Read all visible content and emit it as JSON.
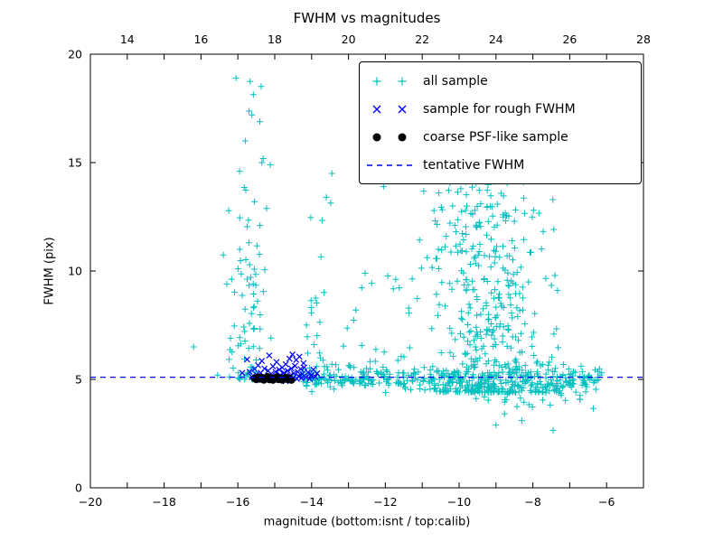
{
  "chart_data": {
    "type": "scatter",
    "title": "FWHM vs magnitudes",
    "xlabel": "magnitude (bottom:isnt / top:calib)",
    "ylabel": "FWHM (pix)",
    "xlim": [
      -20,
      -5
    ],
    "ylim": [
      0,
      20
    ],
    "x_ticks": [
      -20,
      -18,
      -16,
      -14,
      -12,
      -10,
      -8,
      -6
    ],
    "y_ticks": [
      0,
      5,
      10,
      15,
      20
    ],
    "top_axis": {
      "lim": [
        13,
        28
      ],
      "ticks": [
        14,
        16,
        18,
        20,
        22,
        24,
        26,
        28
      ]
    },
    "grid": false,
    "legend_position": "upper right",
    "tentative_fwhm": 5.1,
    "seed": 42,
    "series": [
      {
        "name": "all sample",
        "marker": "+",
        "color": "#00bfbf",
        "points": [
          [
            -17.2,
            6.5
          ],
          [
            -16.55,
            5.2
          ],
          [
            -16.3,
            9.4
          ],
          [
            -16.2,
            6.9
          ],
          [
            -16.05,
            18.9
          ],
          [
            -15.62,
            17.2
          ],
          [
            -15.8,
            16.0
          ],
          [
            -15.35,
            15.0
          ],
          [
            -15.95,
            14.6
          ],
          [
            -15.12,
            14.9
          ],
          [
            -15.55,
            13.2
          ],
          [
            -15.4,
            12.1
          ],
          [
            -15.7,
            11.3
          ],
          [
            -13.45,
            14.5
          ],
          [
            -13.6,
            13.4
          ],
          [
            -12.05,
            13.9
          ],
          [
            -10.45,
            14.75
          ],
          [
            -10.15,
            14.9
          ],
          [
            -9.85,
            15.1
          ],
          [
            -10.55,
            13.6
          ],
          [
            -12.55,
            9.9
          ],
          [
            -12.8,
            8.2
          ],
          [
            -9.0,
            2.9
          ],
          [
            -8.3,
            3.1
          ],
          [
            -7.45,
            2.65
          ],
          [
            -6.35,
            4.85
          ],
          [
            -6.6,
            5.05
          ]
        ],
        "clusters": [
          {
            "count": 300,
            "x": {
              "dist": "uniform",
              "min": -14.3,
              "max": -6.1
            },
            "y": {
              "dist": "gauss",
              "mu": 5.05,
              "sd": 0.27
            }
          },
          {
            "count": 30,
            "x": {
              "dist": "uniform",
              "min": -9.6,
              "max": -6.3
            },
            "y": {
              "dist": "gauss",
              "mu": 4.25,
              "sd": 0.45
            }
          },
          {
            "count": 60,
            "x": {
              "dist": "gauss",
              "mu": -15.75,
              "sd": 0.28,
              "min": -16.4,
              "max": -15.05
            },
            "y": {
              "dist": "power",
              "base": 5.0,
              "scale": 14.0,
              "exp": 3.0
            }
          },
          {
            "count": 25,
            "x": {
              "dist": "gauss",
              "mu": -15.6,
              "sd": 0.25,
              "min": -16.2,
              "max": -15.0
            },
            "y": {
              "dist": "uniform",
              "min": 5.5,
              "max": 10.5
            }
          },
          {
            "count": 40,
            "x": {
              "dist": "gauss",
              "mu": -13.95,
              "sd": 0.25,
              "min": -14.5,
              "max": -13.3
            },
            "y": {
              "dist": "power",
              "base": 5.0,
              "scale": 9.0,
              "exp": 3.0
            }
          },
          {
            "count": 430,
            "x": {
              "dist": "gauss",
              "mu": -9.2,
              "sd": 0.85,
              "min": -11.6,
              "max": -6.9
            },
            "y": {
              "dist": "power",
              "base": 4.4,
              "scale": 10.5,
              "exp": 2.2
            }
          },
          {
            "count": 70,
            "x": {
              "dist": "gauss",
              "mu": -9.7,
              "sd": 0.9,
              "min": -11.5,
              "max": -7.8
            },
            "y": {
              "dist": "uniform",
              "min": 9.5,
              "max": 15.2
            }
          },
          {
            "count": 45,
            "x": {
              "dist": "uniform",
              "min": -13.3,
              "max": -11.2
            },
            "y": {
              "dist": "power",
              "base": 4.8,
              "scale": 5.0,
              "exp": 2.5
            }
          },
          {
            "count": 25,
            "x": {
              "dist": "uniform",
              "min": -8.0,
              "max": -6.2
            },
            "y": {
              "dist": "gauss",
              "mu": 5.0,
              "sd": 0.4
            }
          }
        ]
      },
      {
        "name": "sample for rough FWHM",
        "marker": "x",
        "color": "#0000ff",
        "points": [
          [
            -15.88,
            5.3
          ],
          [
            -15.75,
            5.92
          ],
          [
            -15.68,
            5.35
          ],
          [
            -15.62,
            5.12
          ],
          [
            -15.55,
            5.48
          ],
          [
            -15.5,
            5.22
          ],
          [
            -15.45,
            5.65
          ],
          [
            -15.42,
            5.05
          ],
          [
            -15.38,
            5.3
          ],
          [
            -15.35,
            5.85
          ],
          [
            -15.3,
            5.15
          ],
          [
            -15.28,
            5.5
          ],
          [
            -15.22,
            5.02
          ],
          [
            -15.2,
            4.95
          ],
          [
            -15.18,
            5.4
          ],
          [
            -15.15,
            6.1
          ],
          [
            -15.1,
            5.25
          ],
          [
            -15.05,
            5.6
          ],
          [
            -15.0,
            5.1
          ],
          [
            -14.98,
            5.35
          ],
          [
            -14.95,
            5.8
          ],
          [
            -14.9,
            5.05
          ],
          [
            -14.88,
            5.45
          ],
          [
            -14.85,
            5.2
          ],
          [
            -14.8,
            5.55
          ],
          [
            -14.78,
            5.0
          ],
          [
            -14.75,
            5.3
          ],
          [
            -14.7,
            4.92
          ],
          [
            -14.7,
            5.7
          ],
          [
            -14.68,
            5.12
          ],
          [
            -14.65,
            5.4
          ],
          [
            -14.6,
            5.95
          ],
          [
            -14.58,
            5.18
          ],
          [
            -14.55,
            5.5
          ],
          [
            -14.52,
            6.15
          ],
          [
            -14.5,
            5.08
          ],
          [
            -14.48,
            5.28
          ],
          [
            -14.45,
            5.62
          ],
          [
            -14.42,
            5.9
          ],
          [
            -14.4,
            5.02
          ],
          [
            -14.38,
            5.35
          ],
          [
            -14.35,
            5.15
          ],
          [
            -14.33,
            6.05
          ],
          [
            -14.3,
            5.48
          ],
          [
            -14.28,
            5.06
          ],
          [
            -14.25,
            5.25
          ],
          [
            -14.22,
            5.75
          ],
          [
            -14.2,
            5.55
          ],
          [
            -14.15,
            5.1
          ],
          [
            -14.1,
            5.32
          ],
          [
            -14.05,
            5.02
          ],
          [
            -14.0,
            5.2
          ],
          [
            -13.95,
            5.45
          ],
          [
            -13.9,
            5.12
          ],
          [
            -13.85,
            5.28
          ]
        ]
      },
      {
        "name": "coarse PSF-like sample",
        "marker": "circle",
        "color": "#000000",
        "points": [
          [
            -15.55,
            5.05
          ],
          [
            -15.5,
            5.0
          ],
          [
            -15.45,
            5.1
          ],
          [
            -15.4,
            5.02
          ],
          [
            -15.35,
            5.08
          ],
          [
            -15.3,
            4.98
          ],
          [
            -15.25,
            5.05
          ],
          [
            -15.2,
            5.12
          ],
          [
            -15.15,
            5.0
          ],
          [
            -15.1,
            5.06
          ],
          [
            -15.05,
            4.97
          ],
          [
            -15.0,
            5.04
          ],
          [
            -14.95,
            5.1
          ],
          [
            -14.9,
            5.0
          ],
          [
            -14.85,
            5.06
          ],
          [
            -14.8,
            4.98
          ],
          [
            -14.75,
            5.03
          ],
          [
            -14.7,
            5.09
          ],
          [
            -14.65,
            5.0
          ],
          [
            -14.6,
            5.05
          ],
          [
            -14.55,
            4.97
          ]
        ]
      },
      {
        "name": "tentative FWHM",
        "marker": "dashed-line",
        "color": "#0000ff",
        "y": 5.1
      }
    ]
  }
}
